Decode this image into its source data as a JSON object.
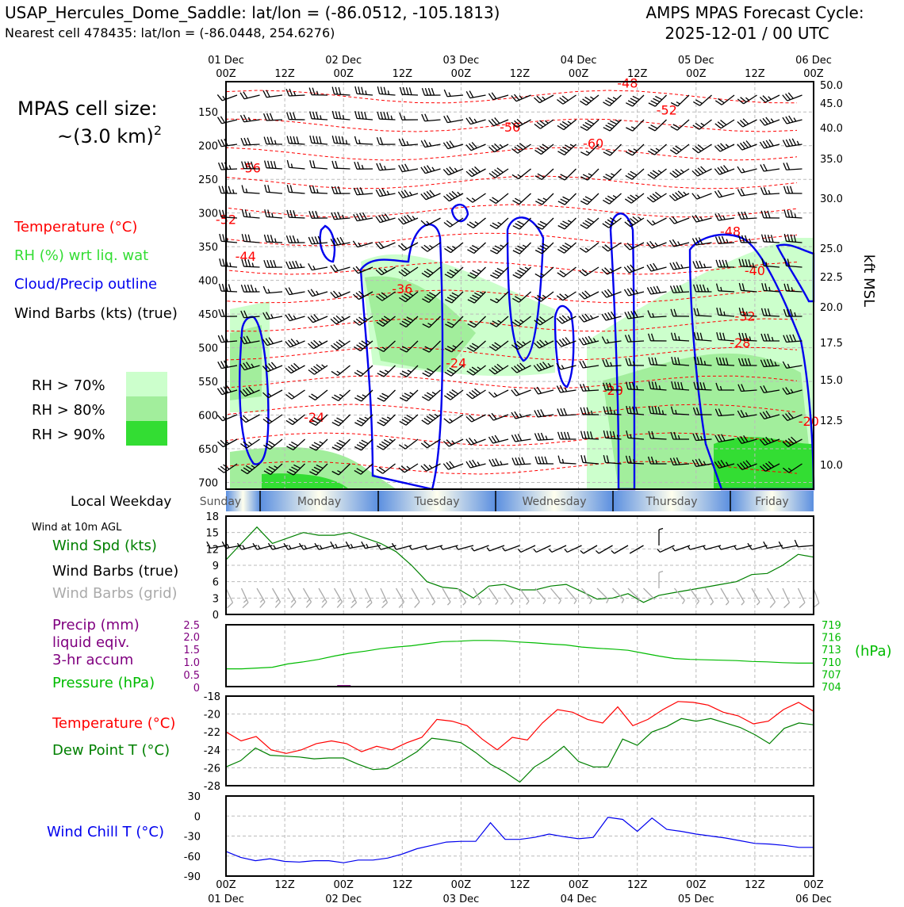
{
  "header": {
    "station_title": "USAP_Hercules_Dome_Saddle: lat/lon = (-86.0512, -105.1813)",
    "nearest_cell": "Nearest cell 478435: lat/lon = (-86.0448, 254.6276)",
    "forecast_line1": "AMPS MPAS Forecast Cycle:",
    "forecast_line2": "2025-12-01 / 00 UTC"
  },
  "cell_size": {
    "line1": "MPAS cell size:",
    "line2": "~(3.0 km)",
    "exponent": "2"
  },
  "legend": {
    "temperature": "Temperature (°C)",
    "rh": "RH (%) wrt liq. wat",
    "cloud": "Cloud/Precip outline",
    "wind": "Wind Barbs (kts) (true)",
    "rh70": "RH > 70%",
    "rh80": "RH > 80%",
    "rh90": "RH > 90%"
  },
  "colors": {
    "temperature": "#ff0000",
    "rh_label": "#33dd33",
    "cloud": "#0000ee",
    "rh70": "#ccffcc",
    "rh80": "#a2ee9c",
    "rh90": "#33dd33",
    "wind_speed": "#008000",
    "wind_grid": "#aaaaaa",
    "precip": "#800080",
    "pressure": "#00bb00",
    "dewpoint": "#008000",
    "windchill": "#0000ee"
  },
  "time_axis": {
    "top_dates": [
      "01 Dec",
      "",
      "02 Dec",
      "",
      "03 Dec",
      "",
      "04 Dec",
      "",
      "05 Dec",
      "",
      "06 Dec"
    ],
    "hours": [
      "00Z",
      "12Z",
      "00Z",
      "12Z",
      "00Z",
      "12Z",
      "00Z",
      "12Z",
      "00Z",
      "12Z",
      "00Z"
    ]
  },
  "weekday": {
    "label": "Local Weekday",
    "days": [
      "Sunday",
      "Monday",
      "Tuesday",
      "Wednesday",
      "Thursday",
      "Friday"
    ]
  },
  "wind_panel": {
    "title": "Wind at 10m AGL",
    "speed_label": "Wind Spd (kts)",
    "true_label": "Wind Barbs (true)",
    "grid_label": "Wind Barbs (grid)"
  },
  "precip_panel": {
    "precip_label1": "Precip (mm)",
    "precip_label2": "liquid eqiv.",
    "precip_label3": "3-hr accum",
    "pressure_label": "Pressure (hPa)",
    "unit_right": "(hPa)"
  },
  "temp_panel": {
    "temp_label": "Temperature (°C)",
    "dew_label": "Dew Point T (°C)"
  },
  "chill_panel": {
    "label": "Wind Chill T (°C)"
  },
  "chart_data": {
    "type": "line",
    "times_hours": [
      0,
      6,
      12,
      18,
      24,
      30,
      36,
      42,
      48,
      54,
      60,
      66,
      72,
      78,
      84,
      90,
      96,
      102,
      108,
      114,
      120
    ],
    "sounding": {
      "type": "heatmap",
      "pressure_ticks": [
        150,
        200,
        250,
        300,
        350,
        400,
        450,
        500,
        550,
        600,
        650,
        700
      ],
      "height_ticks_kft": [
        50.0,
        45.0,
        40.0,
        35.0,
        30.0,
        25.0,
        22.5,
        20.0,
        17.5,
        15.0,
        12.5,
        10.0
      ],
      "ylabel_right": "kft MSL",
      "contour_labels": [
        {
          "text": "-48",
          "t": 82,
          "p": 107
        },
        {
          "text": "-52",
          "t": 90,
          "p": 147
        },
        {
          "text": "-56",
          "t": 58,
          "p": 172
        },
        {
          "text": "-60",
          "t": 75,
          "p": 196
        },
        {
          "text": "-56",
          "t": 5,
          "p": 233
        },
        {
          "text": "-52",
          "t": 0,
          "p": 309
        },
        {
          "text": "-48",
          "t": 103,
          "p": 327
        },
        {
          "text": "-44",
          "t": 4,
          "p": 364
        },
        {
          "text": "-40",
          "t": 108,
          "p": 385
        },
        {
          "text": "-36",
          "t": 36,
          "p": 412
        },
        {
          "text": "-32",
          "t": 106,
          "p": 453
        },
        {
          "text": "-28",
          "t": 105,
          "p": 492
        },
        {
          "text": "-24",
          "t": 47,
          "p": 522
        },
        {
          "text": "-20",
          "t": 79,
          "p": 563
        },
        {
          "text": "-24",
          "t": 18,
          "p": 603
        },
        {
          "text": "-20",
          "t": 119,
          "p": 609
        }
      ]
    },
    "wind10m": {
      "ylim": [
        0,
        18
      ],
      "yticks": [
        0,
        3,
        6,
        9,
        12,
        15,
        18
      ],
      "speed": [
        10,
        13,
        16,
        13,
        14,
        15,
        14.5,
        14.5,
        15,
        14,
        13,
        11.5,
        9,
        6,
        5,
        4.7,
        3,
        5.2,
        5.5,
        4.5,
        4.5,
        5.2,
        5.5,
        4.2,
        2.8,
        3,
        3.8,
        2.2,
        3.5,
        4,
        4.5,
        5,
        5.5,
        6,
        7.3,
        7.5,
        9,
        11,
        10.5
      ],
      "direction_true": [
        260,
        260,
        255,
        255,
        255,
        255,
        255,
        255,
        260,
        260,
        260,
        255,
        255,
        255,
        255,
        255,
        255,
        250,
        250,
        250,
        245,
        245,
        245,
        245,
        240,
        240,
        240,
        240,
        0,
        245,
        250,
        255,
        255,
        255,
        255,
        255,
        260,
        260,
        265
      ],
      "direction_grid": [
        155,
        155,
        150,
        150,
        150,
        150,
        150,
        150,
        155,
        155,
        155,
        150,
        150,
        150,
        150,
        150,
        150,
        145,
        145,
        145,
        140,
        140,
        140,
        140,
        135,
        135,
        135,
        135,
        0,
        140,
        145,
        150,
        150,
        150,
        150,
        150,
        155,
        155,
        160
      ]
    },
    "precip_pressure": {
      "precip_ylim": [
        0,
        2.5
      ],
      "precip_ticks": [
        "0",
        "0.5",
        "1.0",
        "1.5",
        "2.0",
        "2.5"
      ],
      "pressure_ylim": [
        704,
        719
      ],
      "pressure_ticks": [
        719,
        716,
        713,
        710,
        707,
        704
      ],
      "precip_bars": [
        {
          "t": 24,
          "v": 0.06
        },
        {
          "t": 30,
          "v": 0.0
        },
        {
          "t": 102,
          "v": 0.03
        },
        {
          "t": 105,
          "v": 0.03
        },
        {
          "t": 114,
          "v": 0.03
        }
      ],
      "pressure": [
        708.3,
        708.3,
        708.5,
        708.7,
        709.5,
        710.0,
        710.6,
        711.4,
        712.1,
        712.6,
        713.2,
        713.6,
        713.9,
        714.4,
        714.9,
        715.0,
        715.2,
        715.2,
        715.1,
        714.8,
        714.6,
        714.3,
        714.1,
        713.6,
        713.3,
        713.1,
        712.8,
        712.1,
        711.4,
        710.8,
        710.6,
        710.5,
        710.4,
        710.3,
        710.1,
        710.0,
        709.8,
        709.7,
        709.7
      ]
    },
    "temperature": {
      "ylim": [
        -28,
        -18
      ],
      "yticks": [
        -18,
        -20,
        -22,
        -24,
        -26,
        -28
      ],
      "temp": [
        -22.0,
        -23.0,
        -22.5,
        -24.0,
        -24.4,
        -24.0,
        -23.3,
        -23.0,
        -23.3,
        -24.2,
        -23.6,
        -24.0,
        -23.2,
        -22.6,
        -20.6,
        -20.8,
        -21.3,
        -22.8,
        -24.0,
        -22.6,
        -22.9,
        -21.0,
        -19.5,
        -19.8,
        -20.6,
        -21.0,
        -19.2,
        -21.3,
        -20.6,
        -19.5,
        -18.6,
        -18.7,
        -19.0,
        -19.8,
        -20.2,
        -21.1,
        -20.8,
        -19.5,
        -18.7,
        -19.7
      ],
      "dewpoint": [
        -25.9,
        -25.2,
        -23.8,
        -24.6,
        -24.7,
        -24.8,
        -25.0,
        -24.9,
        -24.9,
        -25.6,
        -26.2,
        -26.1,
        -25.2,
        -24.2,
        -22.7,
        -22.9,
        -23.2,
        -24.3,
        -25.6,
        -26.5,
        -27.6,
        -25.9,
        -24.9,
        -23.6,
        -25.3,
        -25.9,
        -25.9,
        -22.8,
        -23.5,
        -22.0,
        -21.4,
        -20.5,
        -20.8,
        -20.5,
        -21.0,
        -21.5,
        -22.3,
        -23.3,
        -21.6,
        -21.0,
        -21.2
      ]
    },
    "wind_chill": {
      "ylim": [
        -90,
        30
      ],
      "yticks": [
        30,
        0,
        -30,
        -60,
        -90
      ],
      "values": [
        -53,
        -62,
        -67,
        -64,
        -68,
        -69,
        -67,
        -67,
        -70,
        -66,
        -66,
        -63,
        -57,
        -49,
        -44,
        -39,
        -38,
        -38,
        -10,
        -35,
        -35,
        -32,
        -27,
        -31,
        -34,
        -32,
        -2,
        -5,
        -23,
        -3,
        -20,
        -23,
        -27,
        -30,
        -33,
        -37,
        -41,
        -42,
        -44,
        -47,
        -47
      ]
    }
  }
}
